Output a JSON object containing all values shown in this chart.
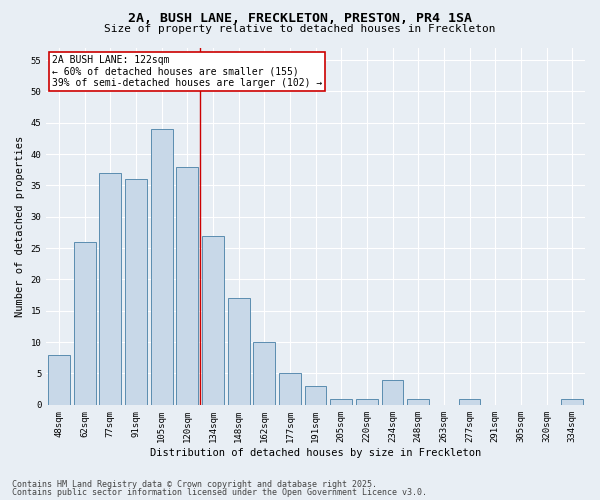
{
  "title": "2A, BUSH LANE, FRECKLETON, PRESTON, PR4 1SA",
  "subtitle": "Size of property relative to detached houses in Freckleton",
  "xlabel": "Distribution of detached houses by size in Freckleton",
  "ylabel": "Number of detached properties",
  "bar_labels": [
    "48sqm",
    "62sqm",
    "77sqm",
    "91sqm",
    "105sqm",
    "120sqm",
    "134sqm",
    "148sqm",
    "162sqm",
    "177sqm",
    "191sqm",
    "205sqm",
    "220sqm",
    "234sqm",
    "248sqm",
    "263sqm",
    "277sqm",
    "291sqm",
    "305sqm",
    "320sqm",
    "334sqm"
  ],
  "bar_values": [
    8,
    26,
    37,
    36,
    44,
    38,
    27,
    17,
    10,
    5,
    3,
    1,
    1,
    4,
    1,
    0,
    1,
    0,
    0,
    0,
    1
  ],
  "bar_color": "#c8d8e8",
  "bar_edge_color": "#5b8db0",
  "vline_x": 5.5,
  "vline_color": "#cc0000",
  "annotation_text": "2A BUSH LANE: 122sqm\n← 60% of detached houses are smaller (155)\n39% of semi-detached houses are larger (102) →",
  "annotation_box_color": "#ffffff",
  "annotation_box_edge": "#cc0000",
  "ylim": [
    0,
    57
  ],
  "yticks": [
    0,
    5,
    10,
    15,
    20,
    25,
    30,
    35,
    40,
    45,
    50,
    55
  ],
  "footer1": "Contains HM Land Registry data © Crown copyright and database right 2025.",
  "footer2": "Contains public sector information licensed under the Open Government Licence v3.0.",
  "bg_color": "#e8eef4",
  "plot_bg_color": "#e8eef4",
  "grid_color": "#ffffff",
  "title_fontsize": 9.5,
  "subtitle_fontsize": 8,
  "tick_fontsize": 6.5,
  "label_fontsize": 7.5,
  "footer_fontsize": 6,
  "annot_fontsize": 7
}
